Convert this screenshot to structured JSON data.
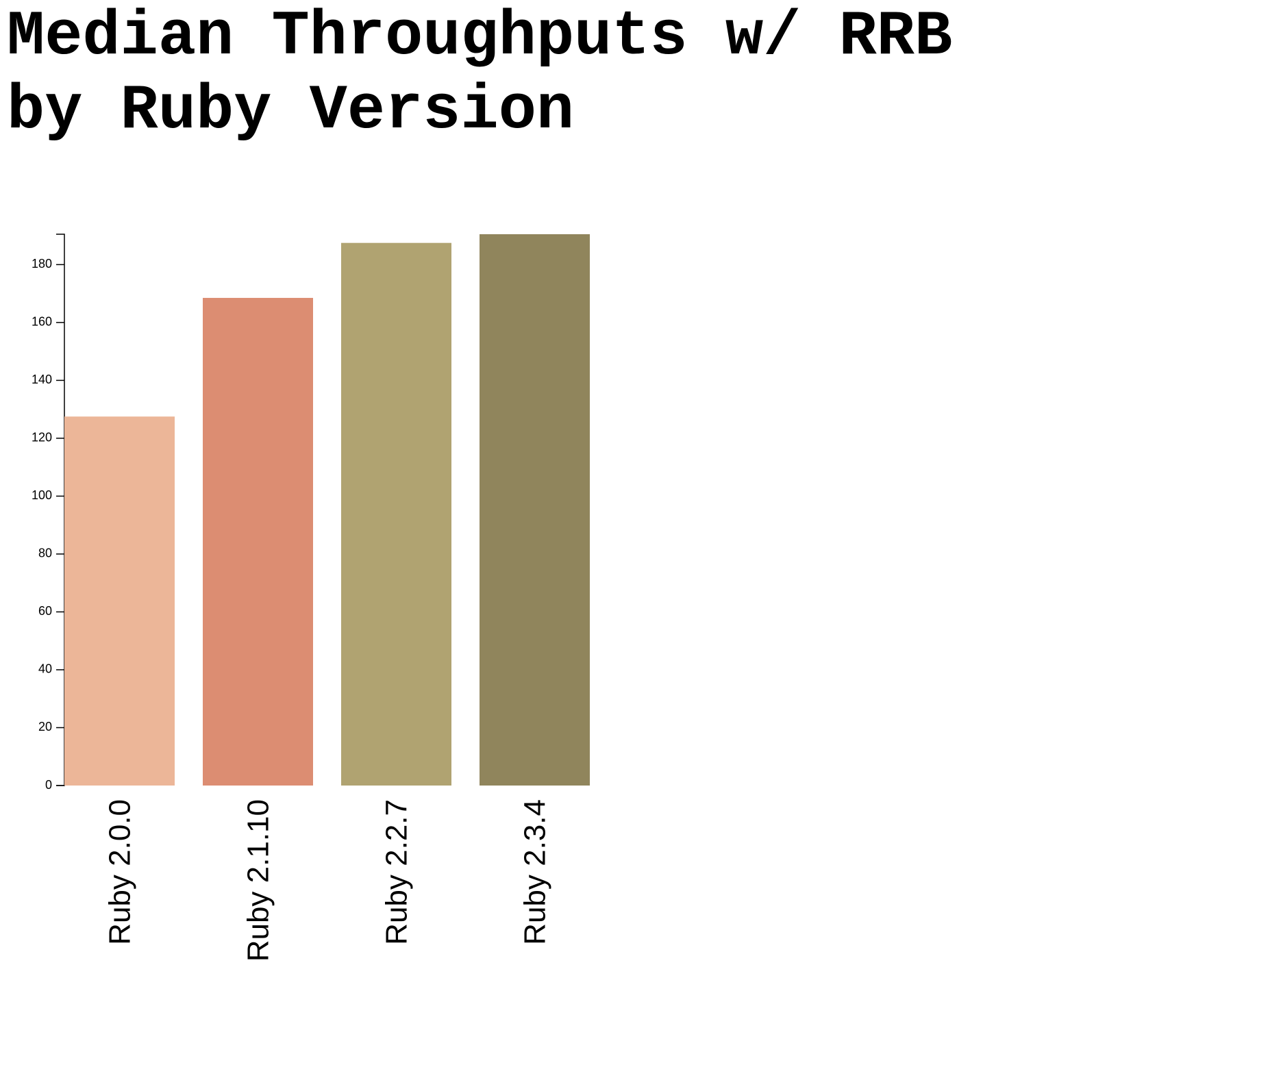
{
  "chart_data": {
    "type": "bar",
    "title_lines": [
      "Median Throughputs w/ RRB",
      "by Ruby Version"
    ],
    "categories": [
      "Ruby 2.0.0",
      "Ruby 2.1.10",
      "Ruby 2.2.7",
      "Ruby 2.3.4"
    ],
    "values": [
      127.5,
      168.5,
      187.5,
      190.5
    ],
    "colors": [
      "#ecb698",
      "#dc8d72",
      "#b0a371",
      "#90855c"
    ],
    "xlabel": "",
    "ylabel": "",
    "ylim": [
      0,
      190.5
    ],
    "yticks": [
      0,
      20,
      40,
      60,
      80,
      100,
      120,
      140,
      160,
      180
    ],
    "grid": false,
    "legend": "none"
  }
}
